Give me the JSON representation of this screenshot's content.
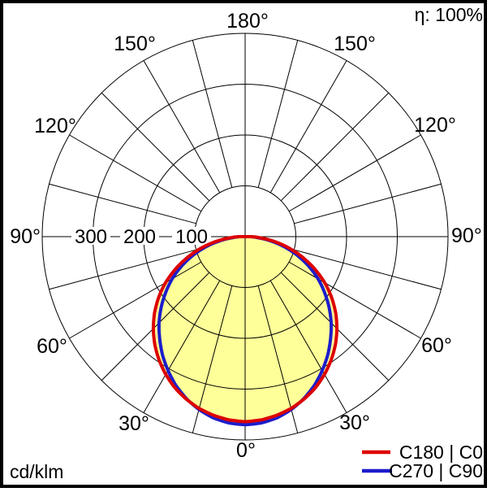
{
  "chart_data": {
    "type": "line",
    "style": "polar-photometric",
    "units": "cd/klm",
    "efficiency": "η: 100%",
    "gamma_step_deg": 5,
    "gamma_max_deg": 90,
    "radial_ticks": [
      100,
      200,
      300
    ],
    "radial_max": 400,
    "angular_grid_step_deg": 15,
    "angle_labels_deg": [
      0,
      30,
      60,
      90,
      120,
      150,
      180
    ],
    "fill_color": "#ffff99",
    "grid_color": "#000000",
    "series": [
      {
        "name": "C180 | C0",
        "color": "#dd0000",
        "values": [
          364,
          362,
          357,
          350,
          340,
          328,
          313,
          296,
          277,
          256,
          233,
          208,
          181,
          152,
          122,
          92,
          62,
          33,
          12
        ]
      },
      {
        "name": "C270 | C90",
        "color": "#1d1dcc",
        "values": [
          370,
          368,
          362,
          352,
          339,
          323,
          304,
          284,
          262,
          240,
          216,
          191,
          166,
          139,
          111,
          83,
          54,
          26,
          10
        ]
      }
    ]
  },
  "labels": {
    "eta": "η: 100%",
    "units": "cd/klm",
    "angle_180": "180°",
    "angle_150": "150°",
    "angle_120": "120°",
    "angle_90": "90°",
    "angle_60": "60°",
    "angle_30": "30°",
    "angle_0": "0°",
    "radial_100": "100",
    "radial_200": "200",
    "radial_300": "300"
  },
  "legend": [
    {
      "label": "C180 | C0",
      "color": "#dd0000"
    },
    {
      "label": "C270 | C90",
      "color": "#1d1dcc"
    }
  ]
}
